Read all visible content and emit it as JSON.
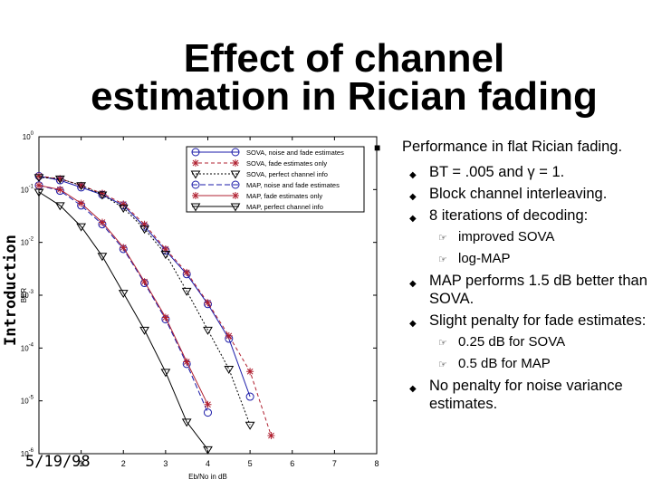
{
  "slide": {
    "title_line1": "Effect of channel",
    "title_line2": "estimation in Rician fading",
    "side_label": "Introduction",
    "date": "5/19/98",
    "bullets": [
      {
        "text": "Performance in flat Rician fading.",
        "children": [
          {
            "text": "BT = .005 and γ = 1."
          },
          {
            "text": "Block channel interleaving."
          },
          {
            "text": "8 iterations of decoding:",
            "children": [
              "improved SOVA",
              "log-MAP"
            ]
          },
          {
            "text": "MAP performs 1.5 dB better than SOVA."
          },
          {
            "text": "Slight penalty for fade estimates:",
            "children": [
              "0.25 dB for SOVA",
              "0.5 dB for MAP"
            ]
          },
          {
            "text": "No penalty for noise variance estimates."
          }
        ]
      }
    ]
  },
  "chart_data": {
    "type": "line",
    "xlabel": "Eb/No in dB",
    "ylabel": "BER",
    "xlim": [
      0,
      8
    ],
    "ylim": [
      1e-06,
      1
    ],
    "yscale": "log",
    "xticks": [
      1,
      2,
      3,
      4,
      5,
      6,
      7,
      8
    ],
    "yticks": [
      {
        "value": 1,
        "label": "10^0"
      },
      {
        "value": 0.1,
        "label": "10^-1"
      },
      {
        "value": 0.01,
        "label": "10^-2"
      },
      {
        "value": 0.001,
        "label": "10^-3"
      },
      {
        "value": 0.0001,
        "label": "10^-4"
      },
      {
        "value": 1e-05,
        "label": "10^-5"
      },
      {
        "value": 1e-06,
        "label": "10^-6"
      }
    ],
    "grid": false,
    "legend_position": "top-right",
    "series": [
      {
        "name": "SOVA, noise and fade estimates",
        "color": "#1a1aa8",
        "marker": "circle",
        "dash": "",
        "x": [
          0,
          0.5,
          1,
          1.5,
          2,
          2.5,
          3,
          3.5,
          4,
          4.5,
          5
        ],
        "y": [
          0.18,
          0.15,
          0.11,
          0.08,
          0.05,
          0.02,
          0.007,
          0.0025,
          0.00068,
          0.00015,
          1.2e-05
        ]
      },
      {
        "name": "SOVA, fade estimates only",
        "color": "#b02030",
        "marker": "star",
        "dash": "4,3",
        "x": [
          0,
          0.5,
          1,
          1.5,
          2,
          2.5,
          3,
          3.5,
          4,
          4.5,
          5,
          5.5
        ],
        "y": [
          0.18,
          0.16,
          0.12,
          0.085,
          0.053,
          0.022,
          0.0075,
          0.0027,
          0.00072,
          0.00017,
          3.6e-05,
          2.2e-06
        ]
      },
      {
        "name": "SOVA, perfect channel info",
        "color": "#000000",
        "marker": "triangle",
        "dash": "2,2",
        "x": [
          0,
          0.5,
          1,
          1.5,
          2,
          2.5,
          3,
          3.5,
          4,
          4.5,
          5
        ],
        "y": [
          0.17,
          0.16,
          0.12,
          0.08,
          0.045,
          0.018,
          0.006,
          0.0012,
          0.00022,
          4e-05,
          3.5e-06
        ]
      },
      {
        "name": "MAP, noise and fade estimates",
        "color": "#1a1aa8",
        "marker": "circle",
        "dash": "6,3",
        "x": [
          0,
          0.5,
          1,
          1.5,
          2,
          2.5,
          3,
          3.5,
          4
        ],
        "y": [
          0.12,
          0.095,
          0.05,
          0.022,
          0.0075,
          0.0017,
          0.00035,
          5e-05,
          6e-06
        ]
      },
      {
        "name": "MAP, fade estimates only",
        "color": "#b02030",
        "marker": "star",
        "dash": "",
        "x": [
          0,
          0.5,
          1,
          1.5,
          2,
          2.5,
          3,
          3.5,
          4
        ],
        "y": [
          0.12,
          0.1,
          0.055,
          0.024,
          0.008,
          0.0018,
          0.00038,
          5.5e-05,
          8.5e-06
        ]
      },
      {
        "name": "MAP, perfect channel info",
        "color": "#000000",
        "marker": "triangle",
        "dash": "",
        "x": [
          0,
          0.5,
          1,
          1.5,
          2,
          2.5,
          3,
          3.5,
          4
        ],
        "y": [
          0.09,
          0.05,
          0.02,
          0.0055,
          0.0011,
          0.00022,
          3.5e-05,
          4e-06,
          1.2e-06
        ]
      }
    ]
  }
}
